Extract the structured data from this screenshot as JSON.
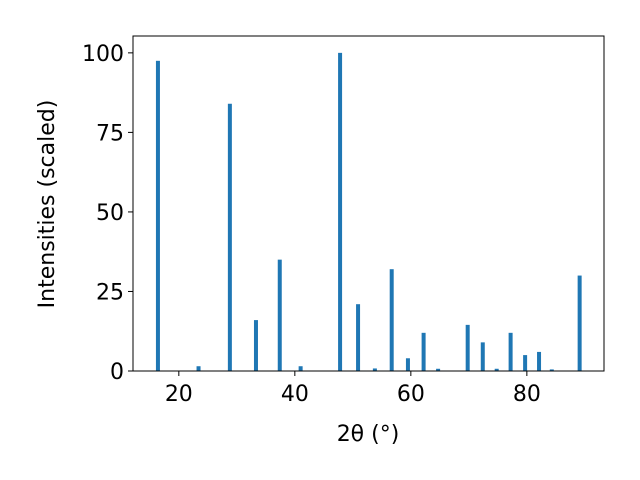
{
  "chart_data": {
    "type": "bar",
    "x_label": "2θ (°)",
    "y_label": "Intensities (scaled)",
    "x": [
      16.4,
      23.4,
      28.8,
      33.3,
      37.4,
      41.0,
      47.8,
      50.9,
      53.8,
      56.7,
      59.5,
      62.2,
      64.7,
      69.8,
      72.4,
      74.8,
      77.2,
      79.7,
      82.1,
      84.3,
      89.1
    ],
    "values": [
      97.5,
      1.5,
      84,
      16,
      35,
      1.5,
      100,
      21,
      0.8,
      32,
      4,
      12,
      0.7,
      14.5,
      9,
      0.7,
      12,
      5,
      6,
      0.5,
      30
    ],
    "color": "#1f77b4",
    "xlim": [
      12.1,
      93.3
    ],
    "xticks": [
      20,
      40,
      60,
      80
    ],
    "ylim": [
      0,
      105.3
    ],
    "yticks": [
      0,
      25,
      50,
      75,
      100
    ]
  }
}
